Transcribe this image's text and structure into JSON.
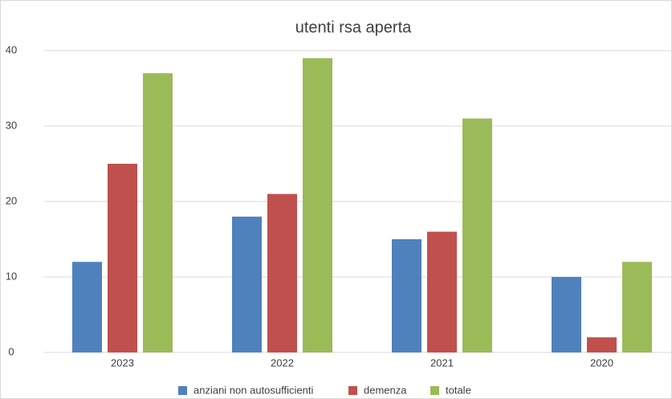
{
  "chart_data": {
    "type": "bar",
    "title": "utenti rsa aperta",
    "categories": [
      "2023",
      "2022",
      "2021",
      "2020"
    ],
    "series": [
      {
        "name": "anziani non autosufficienti",
        "color": "#4f81bd",
        "values": [
          12,
          18,
          15,
          10
        ]
      },
      {
        "name": "demenza",
        "color": "#c0504d",
        "values": [
          25,
          21,
          16,
          2
        ]
      },
      {
        "name": "totale",
        "color": "#9bbb59",
        "values": [
          37,
          39,
          31,
          12
        ]
      }
    ],
    "ylim": [
      0,
      40
    ],
    "yticks": [
      0,
      10,
      20,
      30,
      40
    ],
    "grid": true,
    "legend": "bottom"
  }
}
